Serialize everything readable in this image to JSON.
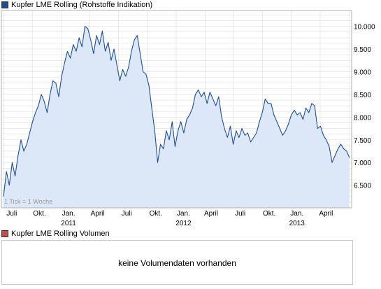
{
  "colors": {
    "line": "#1f4e94",
    "area": "#dce8f8",
    "grid": "#dcdcdc",
    "border": "#b0b0b0",
    "price_swatch": "#1f4e94",
    "volume_swatch": "#c0504d"
  },
  "legend": {
    "price_label": "Kupfer LME Rolling (Rohstoffe Indikation)",
    "volume_label": "Kupfer LME Rolling Volumen"
  },
  "volume_panel": {
    "message": "keine Volumendaten vorhanden"
  },
  "chart_data": {
    "type": "area",
    "title": "Kupfer LME Rolling (Rohstoffe Indikation)",
    "note": "1 Tick = 1 Woche",
    "y_ticks": [
      "10.000",
      "9.500",
      "9.000",
      "8.500",
      "8.000",
      "7.500",
      "7.000",
      "6.500"
    ],
    "y_tick_values": [
      10000,
      9500,
      9000,
      8500,
      8000,
      7500,
      7000,
      6500
    ],
    "ylim": [
      6000,
      10350
    ],
    "x_range": [
      0,
      125
    ],
    "x_ticks": [
      {
        "label": "Juli",
        "x": 3,
        "year": ""
      },
      {
        "label": "Okt.",
        "x": 13,
        "year": ""
      },
      {
        "label": "Jan.",
        "x": 23.5,
        "year": "2011"
      },
      {
        "label": "April",
        "x": 34,
        "year": ""
      },
      {
        "label": "Juli",
        "x": 44.5,
        "year": ""
      },
      {
        "label": "Okt.",
        "x": 55,
        "year": ""
      },
      {
        "label": "Jan.",
        "x": 65,
        "year": "2012"
      },
      {
        "label": "April",
        "x": 75,
        "year": ""
      },
      {
        "label": "Juli",
        "x": 85.5,
        "year": ""
      },
      {
        "label": "Okt.",
        "x": 96,
        "year": ""
      },
      {
        "label": "Jan.",
        "x": 106,
        "year": "2013"
      },
      {
        "label": "April",
        "x": 116.5,
        "year": ""
      }
    ],
    "grid": true,
    "series": [
      {
        "values": [
          6250,
          6800,
          6500,
          7000,
          6700,
          7150,
          7500,
          7250,
          7400,
          7650,
          7900,
          8100,
          8250,
          8500,
          8350,
          8100,
          8500,
          8800,
          8750,
          8450,
          8900,
          9200,
          9450,
          9300,
          9600,
          9450,
          9750,
          9550,
          10000,
          9950,
          9700,
          9400,
          9800,
          9600,
          9900,
          9450,
          9650,
          9250,
          9500,
          9150,
          8800,
          9050,
          8900,
          9100,
          9450,
          9700,
          9800,
          9400,
          9000,
          8950,
          8700,
          8200,
          7700,
          7000,
          7400,
          7300,
          7700,
          7500,
          7900,
          7350,
          7700,
          7900,
          7650,
          7950,
          8050,
          8200,
          8500,
          8600,
          8450,
          8550,
          8300,
          8550,
          8400,
          8250,
          8450,
          8000,
          7750,
          7550,
          7800,
          7400,
          7700,
          7550,
          7750,
          7600,
          7650,
          7450,
          7550,
          7650,
          7900,
          8100,
          8400,
          8300,
          8300,
          8050,
          7900,
          7750,
          7600,
          7700,
          7850,
          8050,
          8150,
          8050,
          8100,
          7950,
          8200,
          8100,
          8300,
          8250,
          7750,
          7800,
          7600,
          7500,
          7350,
          7000,
          7150,
          7300,
          7400,
          7300,
          7250,
          7100
        ]
      }
    ]
  }
}
